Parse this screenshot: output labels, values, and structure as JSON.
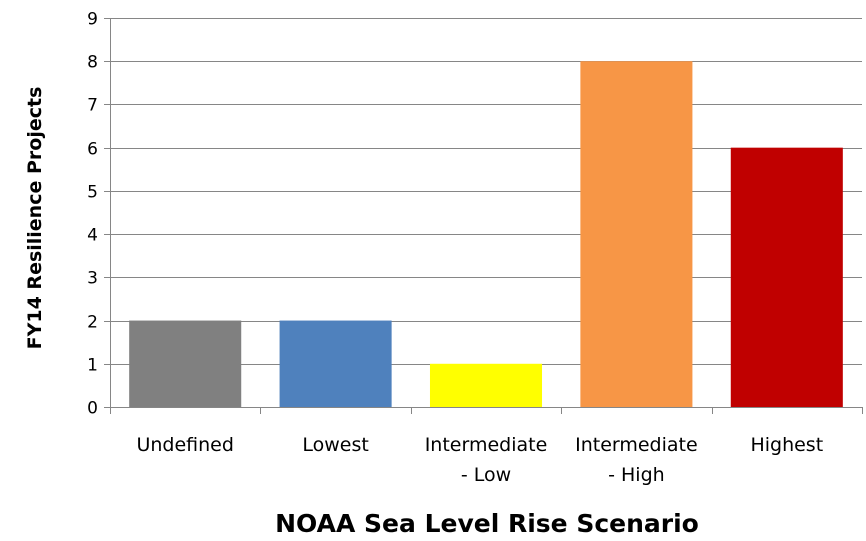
{
  "chart_data": {
    "type": "bar",
    "categories": [
      [
        "Undefined"
      ],
      [
        "Lowest"
      ],
      [
        "Intermediate",
        "- Low"
      ],
      [
        "Intermediate",
        "- High"
      ],
      [
        "Highest"
      ]
    ],
    "values": [
      2,
      2,
      1,
      8,
      6
    ],
    "colors": [
      "#808080",
      "#4f81bd",
      "#ffff00",
      "#f79646",
      "#c00000"
    ],
    "xlabel": "NOAA Sea Level Rise Scenario",
    "ylabel": "FY14 Resilience Projects",
    "ylim": [
      0,
      9
    ],
    "yticks": [
      0,
      1,
      2,
      3,
      4,
      5,
      6,
      7,
      8,
      9
    ],
    "grid": true,
    "grid_color": "#868686",
    "axis_color": "#868686",
    "legend": false
  }
}
